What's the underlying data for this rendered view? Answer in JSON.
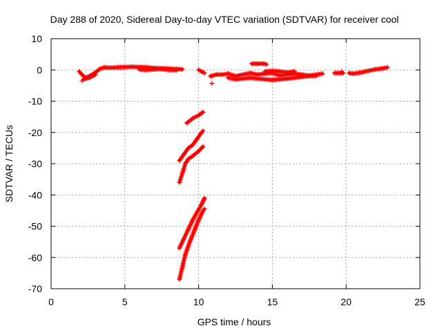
{
  "chart_data": {
    "type": "scatter",
    "title": "Day 288 of 2020, Sidereal Day-to-day VTEC variation (SDTVAR) for receiver cool",
    "xlabel": "GPS time / hours",
    "ylabel": "SDTVAR / TECUs",
    "xlim": [
      0,
      25
    ],
    "ylim": [
      -70,
      10
    ],
    "xticks": [
      0,
      5,
      10,
      15,
      20,
      25
    ],
    "yticks": [
      -70,
      -60,
      -50,
      -40,
      -30,
      -20,
      -10,
      0,
      10
    ],
    "grid": true,
    "legend": "none",
    "marker": "+",
    "series": [
      {
        "name": "SDTVAR",
        "color": "#ff0000",
        "segments": [
          {
            "x": [
              1.9,
              2.1,
              2.3,
              2.6,
              3.0,
              3.3,
              3.6,
              4.0
            ],
            "y": [
              -0.5,
              -1.5,
              -2.5,
              -2.0,
              -0.8,
              0.3,
              0.8,
              0.7
            ]
          },
          {
            "x": [
              2.2,
              2.6,
              3.0
            ],
            "y": [
              -3.0,
              -2.5,
              -1.5
            ]
          },
          {
            "x": [
              4.0,
              4.5,
              5.0,
              5.5,
              6.0,
              6.5,
              7.0,
              7.5,
              8.0,
              8.5,
              8.9
            ],
            "y": [
              0.7,
              0.8,
              0.9,
              1.0,
              0.9,
              0.8,
              0.6,
              0.5,
              0.4,
              0.3,
              0.2
            ]
          },
          {
            "x": [
              6.0,
              6.5,
              7.0,
              7.5,
              8.0,
              8.5
            ],
            "y": [
              0.1,
              0.0,
              0.2,
              0.3,
              0.0,
              -0.1
            ]
          },
          {
            "x": [
              10.0,
              10.2,
              10.4
            ],
            "y": [
              0.0,
              -0.5,
              -1.0
            ]
          },
          {
            "x": [
              10.8,
              11.2,
              11.6,
              12.0,
              12.5,
              13.0,
              13.5,
              14.0,
              14.5,
              15.0,
              15.5,
              16.0,
              16.5,
              17.0,
              17.5,
              18.0,
              18.4
            ],
            "y": [
              -2.0,
              -1.5,
              -1.5,
              -1.2,
              -2.0,
              -1.5,
              -1.0,
              -1.5,
              -1.2,
              -1.0,
              -1.8,
              -1.5,
              -1.2,
              -1.5,
              -1.8,
              -1.5,
              -1.2
            ]
          },
          {
            "x": [
              12.0,
              12.5,
              13.0,
              13.5,
              14.0,
              14.5,
              15.0,
              15.5,
              16.0,
              16.5,
              17.0,
              17.5,
              18.0
            ],
            "y": [
              -2.5,
              -3.0,
              -2.8,
              -2.5,
              -2.8,
              -3.0,
              -3.2,
              -3.0,
              -2.8,
              -2.5,
              -2.2,
              -2.0,
              -1.8
            ]
          },
          {
            "x": [
              14.5,
              15.0,
              15.5,
              16.0,
              16.5
            ],
            "y": [
              -0.5,
              -0.3,
              -0.5,
              -0.8,
              -0.5
            ]
          },
          {
            "x": [
              13.6,
              14.0,
              14.4,
              14.6
            ],
            "y": [
              2.0,
              2.0,
              2.0,
              1.8
            ]
          },
          {
            "x": [
              19.2,
              19.8
            ],
            "y": [
              -1.0,
              -1.0
            ]
          },
          {
            "x": [
              20.2,
              20.5,
              21.0,
              21.5,
              22.0,
              22.5,
              22.8
            ],
            "y": [
              -1.0,
              -1.2,
              -0.8,
              -0.3,
              0.2,
              0.5,
              0.8
            ]
          },
          {
            "x": [
              9.2,
              9.6,
              10.0,
              10.3
            ],
            "y": [
              -17.0,
              -15.5,
              -14.5,
              -13.5
            ]
          },
          {
            "x": [
              8.7,
              9.0,
              9.3,
              9.6,
              9.9,
              10.2,
              10.3
            ],
            "y": [
              -29.0,
              -27.0,
              -25.0,
              -24.0,
              -22.0,
              -20.0,
              -19.5
            ]
          },
          {
            "x": [
              8.7,
              8.9,
              9.1,
              9.3,
              9.6,
              10.0,
              10.3
            ],
            "y": [
              -36.0,
              -33.0,
              -30.0,
              -28.5,
              -27.5,
              -26.0,
              -24.5
            ]
          },
          {
            "x": [
              8.7,
              9.0,
              9.3,
              9.6,
              9.9,
              10.2,
              10.4
            ],
            "y": [
              -57.0,
              -54.0,
              -51.0,
              -48.0,
              -45.5,
              -43.0,
              -41.0
            ]
          },
          {
            "x": [
              8.7,
              8.9,
              9.1,
              9.4,
              9.7,
              10.0,
              10.3,
              10.4
            ],
            "y": [
              -67.0,
              -63.0,
              -59.0,
              -55.0,
              -51.5,
              -48.0,
              -45.0,
              -44.5
            ]
          }
        ],
        "isolated_points": [
          {
            "x": 2.1,
            "y": -3.5
          },
          {
            "x": 10.9,
            "y": -4.3
          },
          {
            "x": 10.9,
            "y": -2.0
          },
          {
            "x": 19.7,
            "y": -0.5
          }
        ]
      }
    ]
  }
}
